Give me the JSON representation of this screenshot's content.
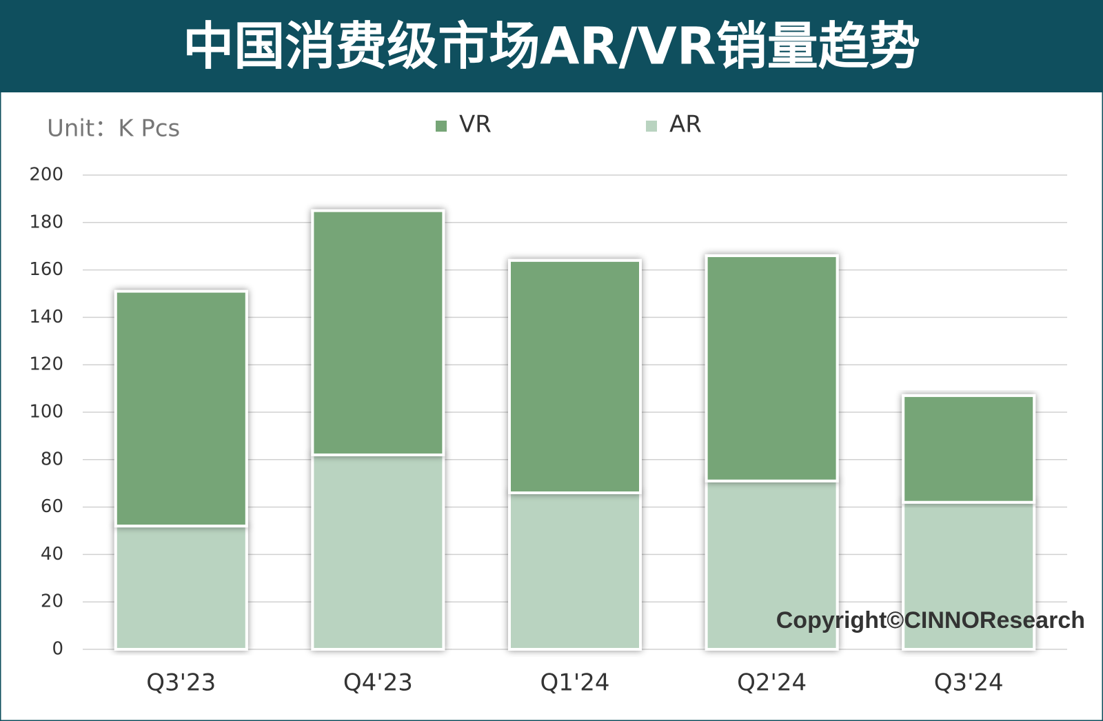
{
  "chart_data": {
    "type": "stacked_bar",
    "title": "中国消费级市场AR/VR销量趋势",
    "unit_label": "Unit：K Pcs",
    "copyright": "Copyright©CINNOResearch",
    "categories": [
      "Q3'23",
      "Q4'23",
      "Q1'24",
      "Q2'24",
      "Q3'24"
    ],
    "series": [
      {
        "name": "VR",
        "color": "#76a577",
        "values": [
          99,
          103,
          98,
          95,
          45
        ]
      },
      {
        "name": "AR",
        "color": "#b9d3c0",
        "values": [
          52,
          82,
          66,
          71,
          62
        ]
      }
    ],
    "ylim": [
      0,
      200
    ],
    "yticks": [
      0,
      20,
      40,
      60,
      80,
      100,
      120,
      140,
      160,
      180,
      200
    ],
    "grid": true
  }
}
